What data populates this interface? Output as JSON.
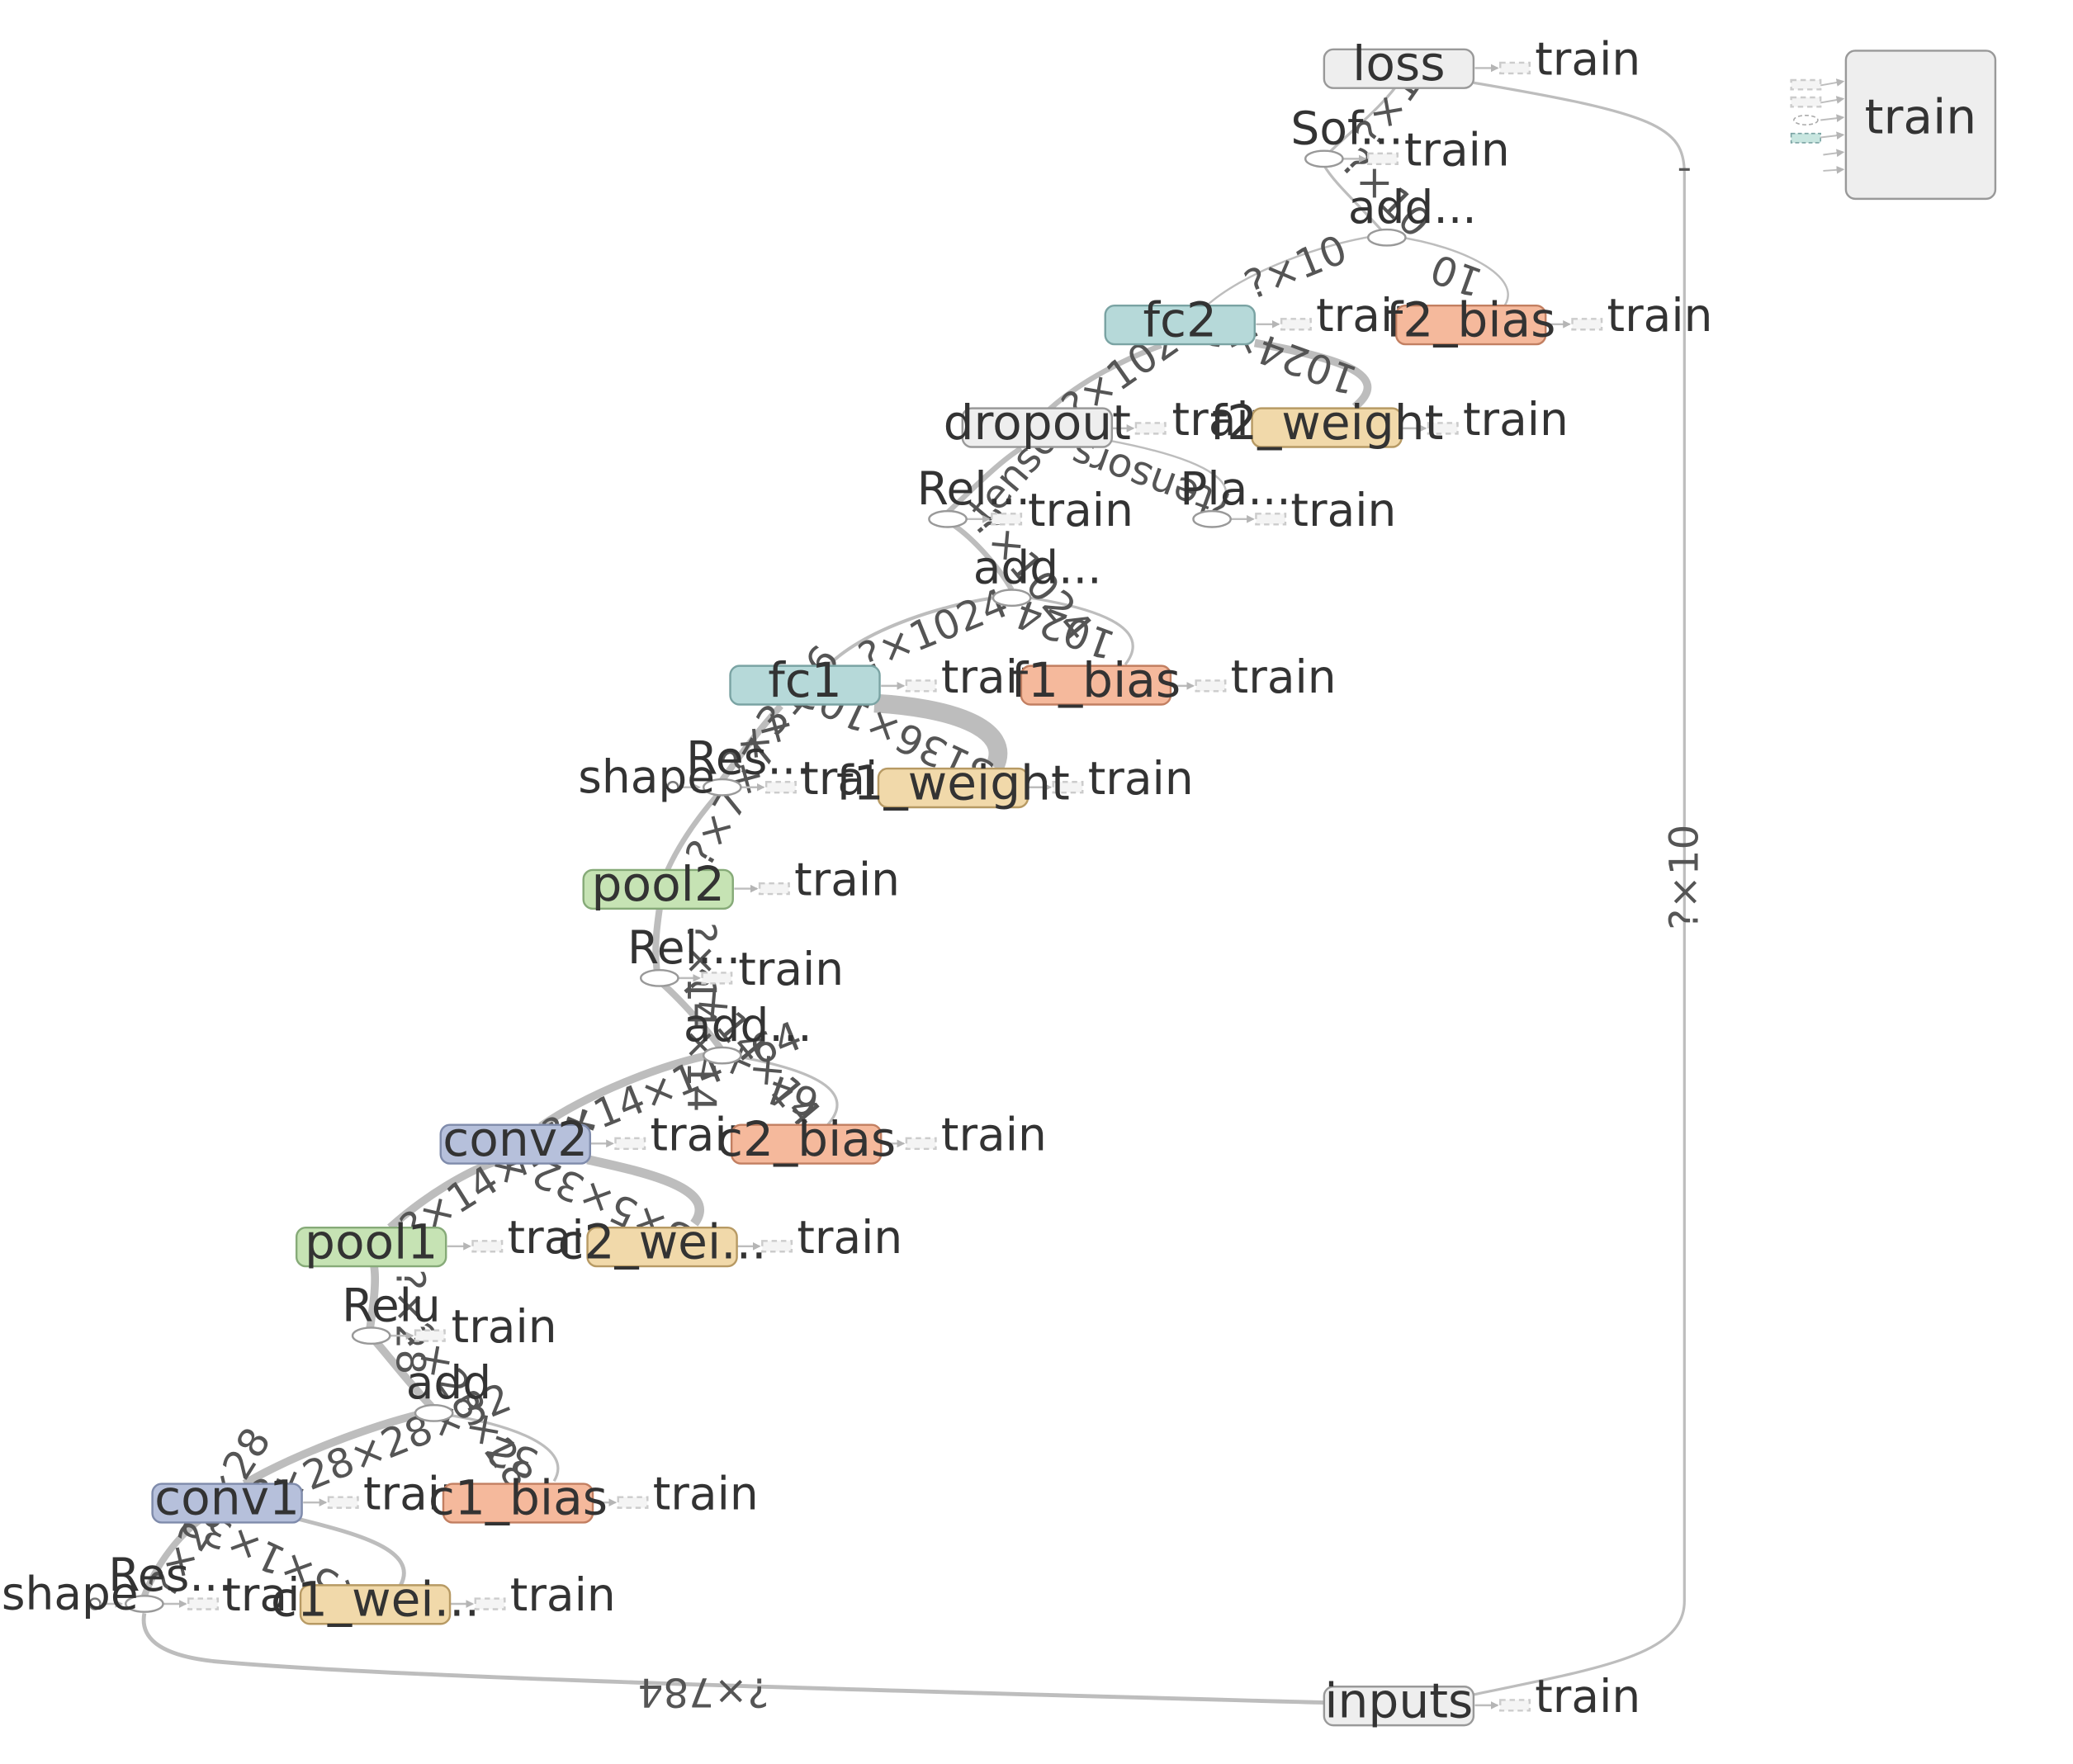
{
  "colors": {
    "meta": "#eeeeee",
    "meta_stroke": "#999999",
    "fc": "#b6d9d9",
    "fc_stroke": "#7aa3a3",
    "conv": "#b6c0db",
    "conv_stroke": "#7f8bab",
    "pool": "#c6e3b4",
    "pool_stroke": "#86aa78",
    "bias": "#f5b99c",
    "bias_stroke": "#c27f61",
    "weight": "#f1d9aa",
    "weight_stroke": "#b79a64",
    "edge": "#bdbdbd"
  },
  "nodes": {
    "loss": "loss",
    "fc2": "fc2",
    "f2_bias": "f2_bias",
    "dropout": "dropout",
    "f2_weight": "f2_weight",
    "fc1": "fc1",
    "f1_bias": "f1_bias",
    "f1_weight": "f1_weight",
    "pool2": "pool2",
    "conv2": "conv2",
    "c2_bias": "c2_bias",
    "pool1": "pool1",
    "c2_wei": "c2_wei...",
    "conv1": "conv1",
    "c1_bias": "c1_bias",
    "c1_wei": "c1_wei...",
    "inputs": "inputs",
    "train_group": "train"
  },
  "ops": {
    "sof": "Sof...",
    "add_fc2": "add...",
    "rel_fc": "Rel...",
    "pla": "Pla...",
    "add_fc1": "add...",
    "res_fc": "Res...",
    "shape_fc": "shape",
    "rel_pool2": "Rel...",
    "add_conv2": "add...",
    "relu_conv1": "Relu",
    "add_conv1": "add",
    "res_in": "Res...",
    "shape_in": "shape"
  },
  "train_label": "train",
  "edges": {
    "sof_loss": "?×10",
    "add_sof": "?×10",
    "fc2_add": "?×10",
    "f2bias_add": "10",
    "dropout_fc2": "?×1024",
    "f2w_fc2": "1024×10",
    "pla_dropout": "?tensors",
    "rel_dropout": "tenso",
    "add_rel": "?×1024",
    "fc1_add": "?×1024",
    "f1bias_add": "1024",
    "res_fc1": "?×3136",
    "f1w_fc1": "3136×1024",
    "pool2_res": "?×7×7×",
    "rel_pool2": "?×14×14",
    "conv2_add": "?×14×14×64",
    "c2bias_add": "64",
    "pool1_conv2": "?×14×14×",
    "c2w_conv2": "5×5×32×64",
    "relu_pool1": "?×28",
    "add_relu": "?×28×28",
    "conv1_add": "?×28×28×32",
    "c1bias_add": "32",
    "res_conv1": "?×28×28",
    "c1w_conv1": "5×5×1×32",
    "inputs_res": "?×784",
    "inputs_loss": "?×10"
  }
}
